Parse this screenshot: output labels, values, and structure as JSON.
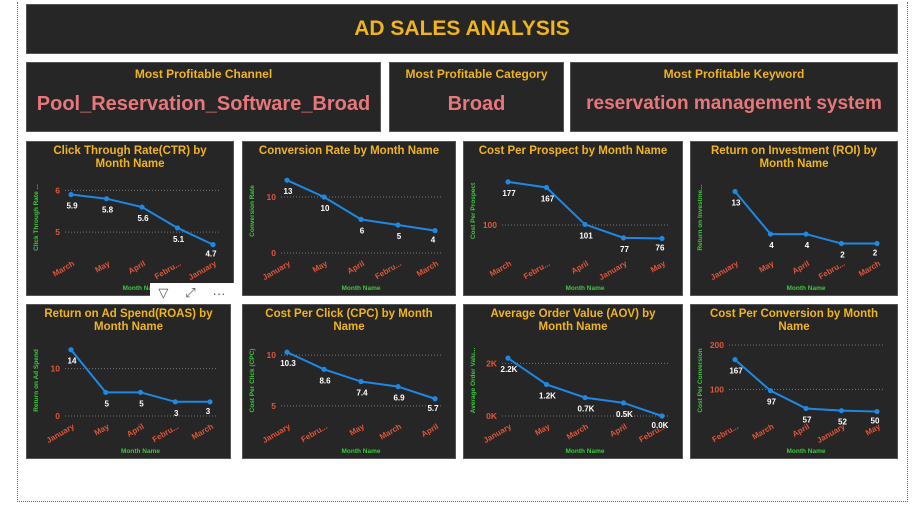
{
  "title": "AD SALES ANALYSIS",
  "kpis": [
    {
      "label": "Most Profitable Channel",
      "value": "Pool_Reservation_Software_Broad"
    },
    {
      "label": "Most Profitable Category",
      "value": "Broad"
    },
    {
      "label": "Most Profitable Keyword",
      "value": "reservation management system"
    }
  ],
  "toolbar": {
    "filter_icon": "▽",
    "focus_icon": "⤢",
    "more_icon": "···"
  },
  "colors": {
    "panel": "#262626",
    "accent": "#f0b41c",
    "line": "#1e88e5",
    "tick": "#e0553a",
    "axis_title": "#3cc83c",
    "kpi_value": "#e8777a"
  },
  "chart_data": [
    {
      "type": "line",
      "title": "Click Through Rate(CTR) by Month Name",
      "xlabel": "Month Name",
      "ylabel": "Click Through Rate ...",
      "categories": [
        "March",
        "May",
        "April",
        "Febru...",
        "January"
      ],
      "values": [
        5.9,
        5.8,
        5.6,
        5.1,
        4.7
      ],
      "labels": [
        "5.9",
        "5.8",
        "5.6",
        "5.1",
        "4.7"
      ],
      "ylim": [
        4.5,
        6.2
      ],
      "yticks": [
        6,
        5
      ],
      "ytick_labels": [
        "6",
        "5"
      ]
    },
    {
      "type": "line",
      "title": "Conversion Rate by Month Name",
      "xlabel": "Month Name",
      "ylabel": "Conversion Rate",
      "categories": [
        "January",
        "May",
        "April",
        "Febru...",
        "March"
      ],
      "values": [
        13,
        10,
        6,
        5,
        4
      ],
      "labels": [
        "13",
        "10",
        "6",
        "5",
        "4"
      ],
      "ylim": [
        0,
        15
      ],
      "yticks": [
        10,
        0
      ],
      "ytick_labels": [
        "10",
        "0"
      ]
    },
    {
      "type": "line",
      "title": "Cost Per Prospect by Month Name",
      "xlabel": "Month Name",
      "ylabel": "Cost Per Prospect",
      "categories": [
        "March",
        "Febru...",
        "April",
        "January",
        "May"
      ],
      "values": [
        177,
        167,
        101,
        77,
        76
      ],
      "labels": [
        "177",
        "167",
        "101",
        "77",
        "76"
      ],
      "ylim": [
        50,
        200
      ],
      "yticks": [
        100
      ],
      "ytick_labels": [
        "100"
      ]
    },
    {
      "type": "line",
      "title": "Return on Investment (ROI) by Month Name",
      "xlabel": "Month Name",
      "ylabel": "Return on Investme...",
      "categories": [
        "January",
        "May",
        "April",
        "Febru...",
        "March"
      ],
      "values": [
        13,
        4,
        4,
        2,
        2
      ],
      "labels": [
        "13",
        "4",
        "4",
        "2",
        "2"
      ],
      "ylim": [
        0,
        15
      ],
      "yticks": [],
      "ytick_labels": []
    },
    {
      "type": "line",
      "title": "Return on Ad Spend(ROAS) by Month Name",
      "xlabel": "Month Name",
      "ylabel": "Return on Ad Spend",
      "categories": [
        "January",
        "May",
        "April",
        "Febru...",
        "March"
      ],
      "values": [
        14,
        5,
        5,
        3,
        3
      ],
      "labels": [
        "14",
        "5",
        "5",
        "3",
        "3"
      ],
      "ylim": [
        0,
        15
      ],
      "yticks": [
        10,
        0
      ],
      "ytick_labels": [
        "10",
        "0"
      ]
    },
    {
      "type": "line",
      "title": "Cost Per Click (CPC) by Month Name",
      "xlabel": "Month Name",
      "ylabel": "Cost Per Click (CPC)",
      "categories": [
        "January",
        "Febru...",
        "May",
        "March",
        "April"
      ],
      "values": [
        10.3,
        8.6,
        7.4,
        6.9,
        5.7
      ],
      "labels": [
        "10.3",
        "8.6",
        "7.4",
        "6.9",
        "5.7"
      ],
      "ylim": [
        4,
        11
      ],
      "yticks": [
        10,
        5
      ],
      "ytick_labels": [
        "10",
        "5"
      ]
    },
    {
      "type": "line",
      "title": "Average Order Value (AOV) by Month Name",
      "xlabel": "Month Name",
      "ylabel": "Average Order Valu...",
      "categories": [
        "January",
        "May",
        "March",
        "April",
        "Febru..."
      ],
      "values": [
        2200,
        1200,
        700,
        500,
        0
      ],
      "labels": [
        "2.2K",
        "1.2K",
        "0.7K",
        "0.5K",
        "0.0K"
      ],
      "ylim": [
        0,
        2700
      ],
      "yticks": [
        2000,
        0
      ],
      "ytick_labels": [
        "2K",
        "0K"
      ]
    },
    {
      "type": "line",
      "title": "Cost Per Conversion by Month Name",
      "xlabel": "Month Name",
      "ylabel": "Cost Per Conversion",
      "categories": [
        "Febru...",
        "March",
        "April",
        "January",
        "May"
      ],
      "values": [
        167,
        97,
        57,
        52,
        50
      ],
      "labels": [
        "167",
        "97",
        "57",
        "52",
        "50"
      ],
      "ylim": [
        40,
        200
      ],
      "yticks": [
        200,
        100
      ],
      "ytick_labels": [
        "200",
        "100"
      ]
    }
  ]
}
